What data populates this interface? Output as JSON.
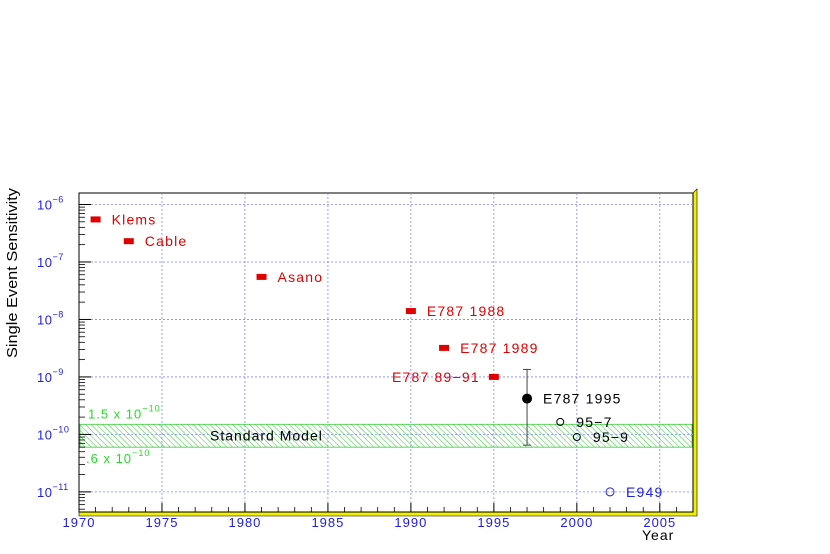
{
  "chart_data": {
    "type": "scatter",
    "title": "",
    "xlabel": "Year",
    "ylabel": "Single Event Sensitivity",
    "xlim": [
      1970,
      2007
    ],
    "ylim_log10": [
      -11.35,
      -5.8
    ],
    "y_scale": "log",
    "grid": true,
    "x_ticks": [
      "1970",
      "1975",
      "1980",
      "1985",
      "1990",
      "1995",
      "2000",
      "2005"
    ],
    "y_ticks": [
      {
        "base": "10",
        "exp": "−6"
      },
      {
        "base": "10",
        "exp": "−7"
      },
      {
        "base": "10",
        "exp": "−8"
      },
      {
        "base": "10",
        "exp": "−9"
      },
      {
        "base": "10",
        "exp": "−10"
      },
      {
        "base": "10",
        "exp": "−11"
      }
    ],
    "points": [
      {
        "label": "Klems",
        "x": 1971.0,
        "y": 5.5e-07,
        "style": "red-square",
        "label_side": "right"
      },
      {
        "label": "Cable",
        "x": 1973.0,
        "y": 2.3e-07,
        "style": "red-square",
        "label_side": "right"
      },
      {
        "label": "Asano",
        "x": 1981.0,
        "y": 5.5e-08,
        "style": "red-square",
        "label_side": "right"
      },
      {
        "label": "E787 1988",
        "x": 1990.0,
        "y": 1.4e-08,
        "style": "red-square",
        "label_side": "right"
      },
      {
        "label": "E787 1989",
        "x": 1992.0,
        "y": 3.2e-09,
        "style": "red-square",
        "label_side": "right"
      },
      {
        "label": "E787 89−91",
        "x": 1995.0,
        "y": 1e-09,
        "style": "red-square",
        "label_side": "left"
      },
      {
        "label": "E787 1995",
        "x": 1997.0,
        "y": 4.2e-10,
        "y_err_high": 1.35e-09,
        "y_err_low": 6.5e-11,
        "style": "black-dot",
        "label_side": "right"
      },
      {
        "label": "95−7",
        "x": 1999.0,
        "y": 1.65e-10,
        "style": "open-circle-black",
        "label_side": "right"
      },
      {
        "label": "95−9",
        "x": 2000.0,
        "y": 9e-11,
        "style": "open-circle-black",
        "label_side": "right"
      },
      {
        "label": "E949",
        "x": 2002.0,
        "y": 1e-11,
        "style": "open-circle-blue",
        "label_side": "right"
      }
    ],
    "band": {
      "label": "Standard Model",
      "upper": 1.5e-10,
      "lower": 6e-11,
      "upper_label": {
        "text": "1.5 x 10",
        "exp": "−10"
      },
      "lower_label": {
        "text": ".6 x 10",
        "exp": "−10"
      }
    },
    "colors": {
      "frame": "#000000",
      "frame_shadow": "#f0f000",
      "grid": "#8080ff",
      "tick_labels": "#2020e0",
      "red_points": "#e00000",
      "band": "#33cc33",
      "band_labels": "#22dd22",
      "open_circle_blue": "#2020e0",
      "axis_title": "#000000"
    }
  }
}
